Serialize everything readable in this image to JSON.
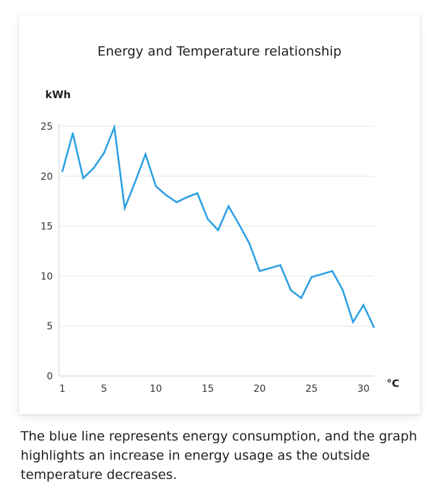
{
  "colors": {
    "line": "#2a9fe3",
    "grid": "#e6e6e6",
    "axis": "#d0d0d0",
    "tick_text": "#333333",
    "unit_text": "#1f1f1f"
  },
  "caption": "The blue line represents energy consumption, and the graph highlights an increase in energy usage as the outside temperature decreases.",
  "chart_data": {
    "type": "line",
    "title": "Energy and Temperature relationship",
    "ylabel": "kWh",
    "xlabel": "°C",
    "xlim": [
      1,
      31
    ],
    "ylim": [
      0,
      25
    ],
    "xticks": [
      1,
      5,
      10,
      15,
      20,
      25,
      30
    ],
    "yticks": [
      0,
      5,
      10,
      15,
      20,
      25
    ],
    "grid": true,
    "series": [
      {
        "x": [
          1,
          2,
          3,
          4,
          5,
          6,
          7,
          8,
          9,
          10,
          11,
          12,
          13,
          14,
          15,
          16,
          17,
          18,
          19,
          20,
          21,
          22,
          23,
          24,
          25,
          26,
          27,
          28,
          29,
          30,
          31
        ],
        "values": [
          20.5,
          24.3,
          19.8,
          20.8,
          22.3,
          24.9,
          16.8,
          19.4,
          22.2,
          19.0,
          18.1,
          17.4,
          17.9,
          18.3,
          15.7,
          14.6,
          17.0,
          15.2,
          13.3,
          10.5,
          10.8,
          11.1,
          8.6,
          7.8,
          9.9,
          10.2,
          10.5,
          8.6,
          5.4,
          7.1,
          4.9
        ]
      }
    ]
  }
}
